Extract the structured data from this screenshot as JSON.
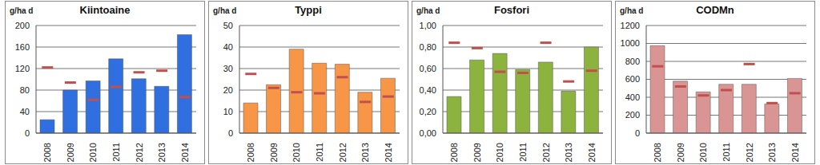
{
  "chart_data": [
    {
      "type": "bar",
      "title": "Kiintoaine",
      "ylabel": "g/ha d",
      "categories": [
        "2008",
        "2009",
        "2010",
        "2011",
        "2012",
        "2013",
        "2014"
      ],
      "series": [
        {
          "type": "bar",
          "color": "#2f6fe0",
          "values": [
            25,
            80,
            97,
            138,
            101,
            87,
            183
          ]
        },
        {
          "type": "scatter",
          "marker": "dash",
          "color": "#c0504d",
          "values": [
            122,
            94,
            62,
            86,
            113,
            116,
            67
          ]
        }
      ],
      "ylim": [
        0,
        200
      ],
      "yticks": [
        0,
        40,
        80,
        120,
        160,
        200
      ],
      "grid": true
    },
    {
      "type": "bar",
      "title": "Typpi",
      "ylabel": "g/ha d",
      "categories": [
        "2008",
        "2009",
        "2010",
        "2011",
        "2012",
        "2013",
        "2014"
      ],
      "series": [
        {
          "type": "bar",
          "color": "#f79646",
          "values": [
            14,
            22.5,
            39,
            32.5,
            32,
            19,
            25.5
          ]
        },
        {
          "type": "scatter",
          "marker": "dash",
          "color": "#c0504d",
          "values": [
            27.5,
            21,
            19,
            18.5,
            26,
            14.5,
            17
          ]
        }
      ],
      "ylim": [
        0,
        50
      ],
      "yticks": [
        0,
        10,
        20,
        30,
        40,
        50
      ],
      "grid": true
    },
    {
      "type": "bar",
      "title": "Fosfori",
      "ylabel": "g/ha d",
      "categories": [
        "2008",
        "2009",
        "2010",
        "2011",
        "2012",
        "2013",
        "2014"
      ],
      "series": [
        {
          "type": "bar",
          "color": "#8db33f",
          "values": [
            0.34,
            0.68,
            0.74,
            0.59,
            0.66,
            0.39,
            0.8
          ]
        },
        {
          "type": "scatter",
          "marker": "dash",
          "color": "#c0504d",
          "values": [
            0.84,
            0.79,
            0.57,
            0.56,
            0.84,
            0.48,
            0.58
          ]
        }
      ],
      "ylim": [
        0,
        1
      ],
      "yticks": [
        {
          "value": 0,
          "label": "0,00"
        },
        {
          "value": 0.2,
          "label": "0,20"
        },
        {
          "value": 0.4,
          "label": "0,40"
        },
        {
          "value": 0.6,
          "label": "0,60"
        },
        {
          "value": 0.8,
          "label": "0,80"
        },
        {
          "value": 1,
          "label": "1,00"
        }
      ],
      "grid": true
    },
    {
      "type": "bar",
      "title": "CODMn",
      "ylabel": "g/ha d",
      "categories": [
        "2008",
        "2009",
        "2010",
        "2011",
        "2012",
        "2013",
        "2014"
      ],
      "series": [
        {
          "type": "bar",
          "color": "#d99594",
          "values": [
            975,
            580,
            460,
            545,
            545,
            325,
            610
          ]
        },
        {
          "type": "scatter",
          "marker": "dash",
          "color": "#c0504d",
          "values": [
            745,
            520,
            420,
            480,
            770,
            335,
            445
          ]
        }
      ],
      "ylim": [
        0,
        1200
      ],
      "yticks": [
        0,
        200,
        400,
        600,
        800,
        1000,
        1200
      ],
      "grid": true
    }
  ]
}
